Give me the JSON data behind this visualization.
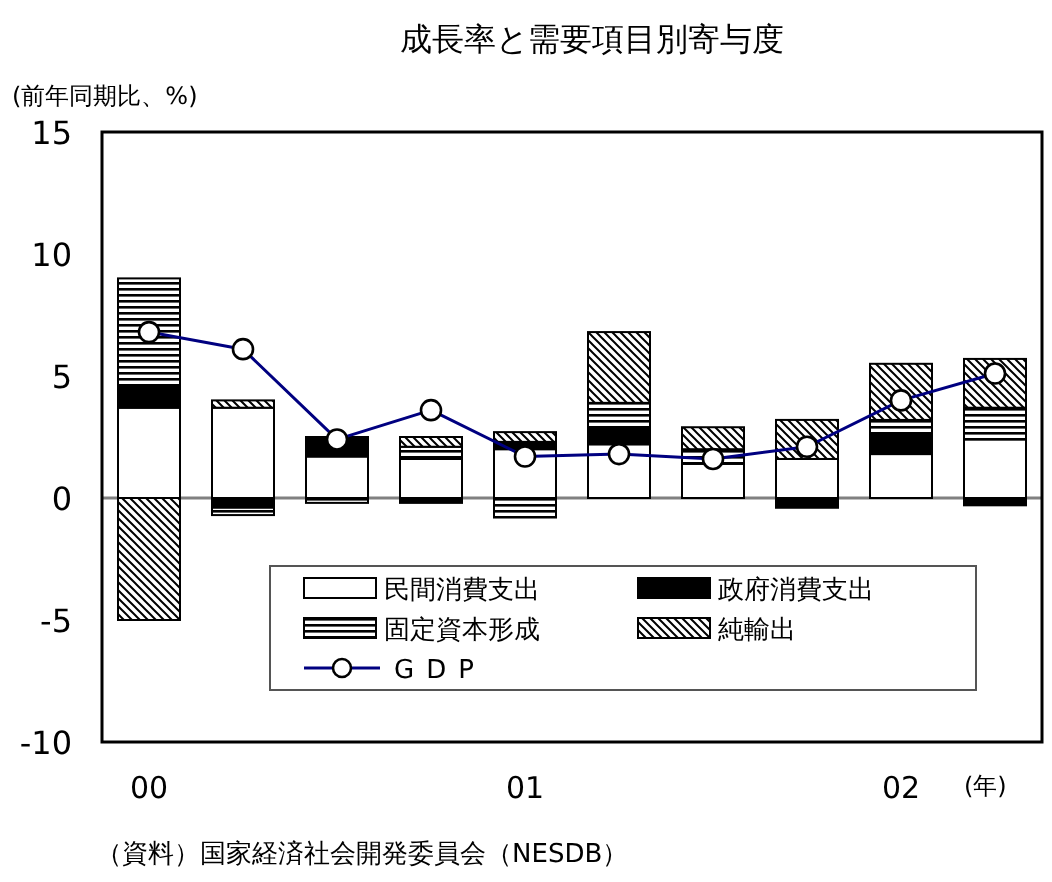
{
  "chart_data": {
    "type": "bar",
    "stacked": true,
    "title": "成長率と需要項目別寄与度",
    "ylabel": "(前年同期比、%)",
    "xlabel": "(年)",
    "categories": [
      "00",
      null,
      null,
      null,
      "01",
      null,
      null,
      null,
      "02",
      null
    ],
    "ylim": [
      -10,
      15
    ],
    "yticks": [
      -10,
      -5,
      0,
      5,
      10,
      15
    ],
    "grid": false,
    "legend": "bottom",
    "ref_lines": [
      {
        "axis": "y",
        "value": 0,
        "color": "#808080"
      }
    ],
    "series": [
      {
        "name": "民間消費支出",
        "color": "#ffffff",
        "values": [
          3.7,
          3.7,
          1.7,
          1.6,
          2.0,
          2.2,
          1.4,
          1.6,
          1.8,
          2.4
        ]
      },
      {
        "name": "政府消費支出",
        "color": "#000000",
        "values": [
          0.9,
          -0.4,
          0.8,
          -0.2,
          0.3,
          0.7,
          null,
          -0.4,
          0.8,
          -0.3
        ]
      },
      {
        "name": "固定資本形成",
        "color": "#000000",
        "values": [
          4.4,
          -0.3,
          -0.2,
          0.5,
          -0.8,
          1.0,
          0.6,
          0,
          0.6,
          1.3
        ]
      },
      {
        "name": "純輸出",
        "color": "#000000",
        "values": [
          -5.0,
          0.3,
          0,
          0.4,
          0.4,
          2.9,
          0.9,
          1.6,
          2.3,
          2.0
        ]
      },
      {
        "name": "GDP",
        "type": "line",
        "color": "#000080",
        "marker": "circle",
        "values": [
          6.8,
          6.1,
          2.4,
          3.6,
          1.7,
          1.8,
          1.6,
          2.1,
          4.0,
          5.1
        ]
      }
    ],
    "annotations": [
      "（資料）国家経済社会開発委員会（NESDB）"
    ]
  }
}
